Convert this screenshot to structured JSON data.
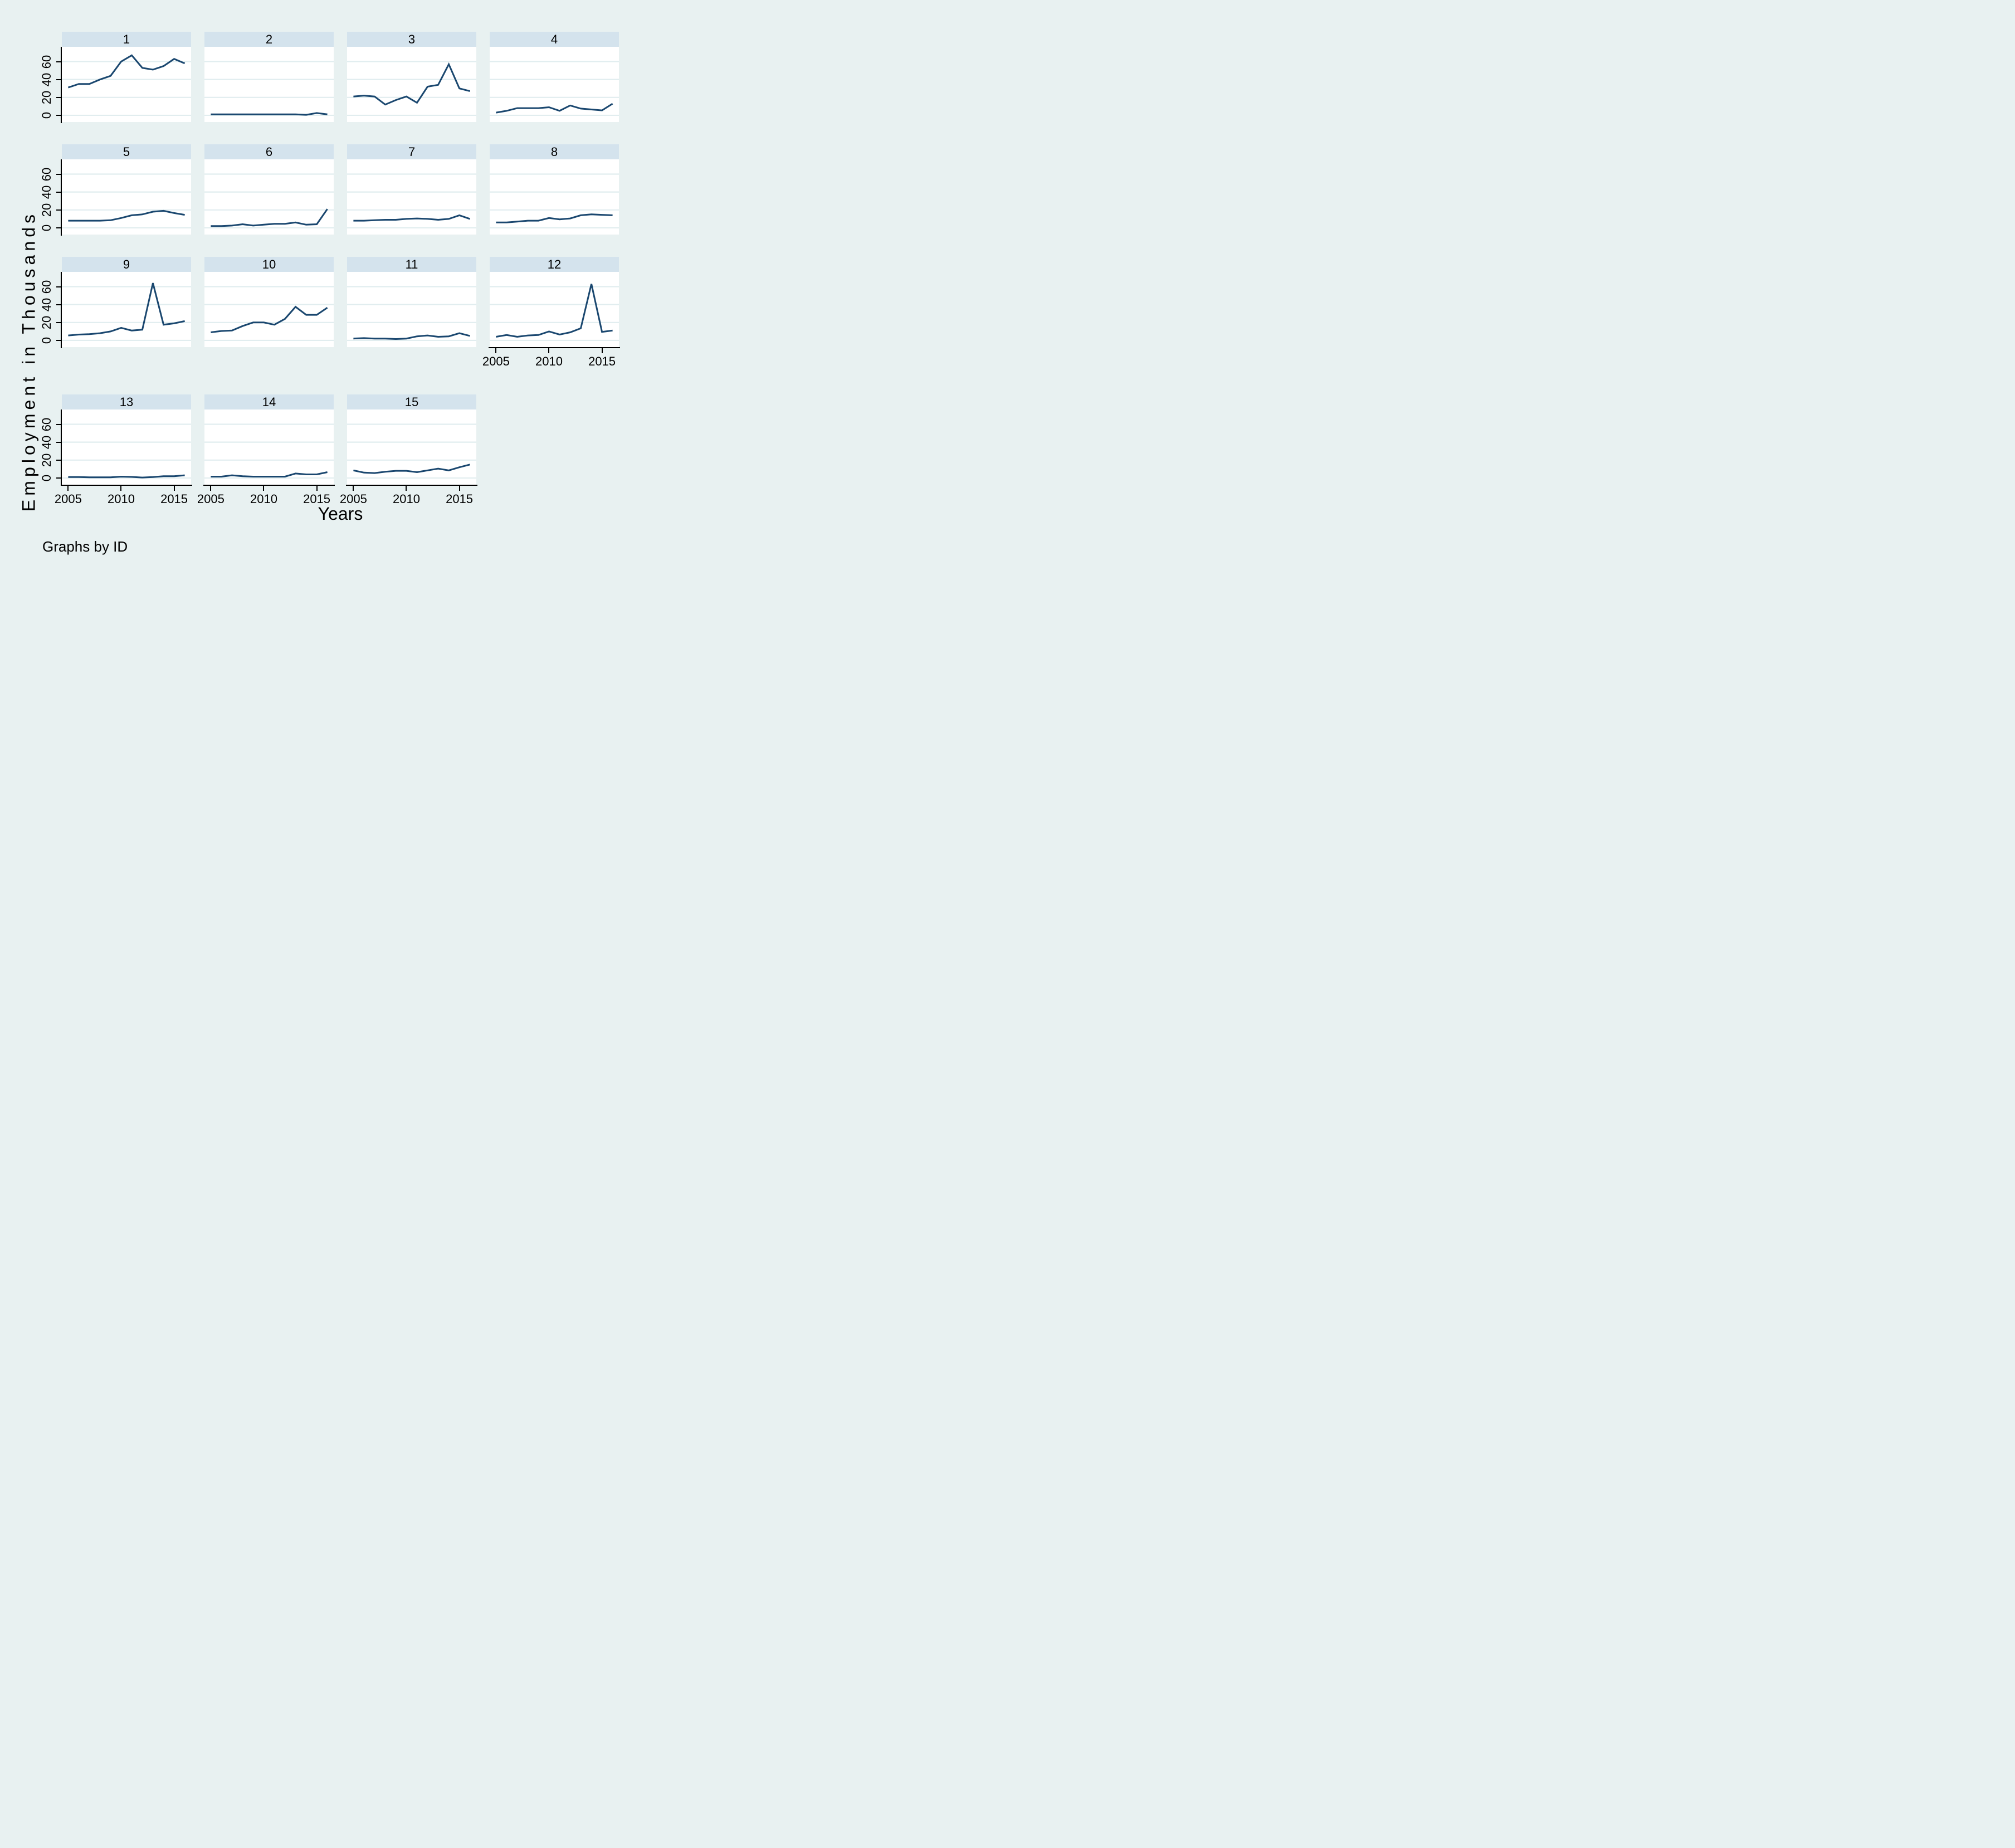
{
  "figure": {
    "ylabel": "Employment in Thousands",
    "xlabel": "Years",
    "caption": "Graphs by ID",
    "colors": {
      "background": "#e8f1f1",
      "panel_header": "#d4e3ed",
      "plot_background": "#ffffff",
      "gridline": "#e1edef",
      "line": "#1a476f",
      "axis": "#000000"
    }
  },
  "chart_data": {
    "type": "line",
    "title": "",
    "xlabel": "Years",
    "ylabel": "Employment in Thousands",
    "facet_by": "ID",
    "grid": true,
    "legend": "none",
    "x": [
      2005,
      2006,
      2007,
      2008,
      2009,
      2010,
      2011,
      2012,
      2013,
      2014,
      2015,
      2016
    ],
    "xticks": [
      2005,
      2010,
      2015
    ],
    "yticks": [
      0,
      20,
      40,
      60
    ],
    "xlim": [
      2004.4,
      2016.6
    ],
    "ylim": [
      -7.5,
      76.5
    ],
    "series": [
      {
        "name": "1",
        "values": [
          31,
          35,
          35,
          40,
          44,
          60,
          67,
          53,
          51,
          55,
          63,
          58
        ]
      },
      {
        "name": "2",
        "values": [
          1,
          1,
          1,
          1,
          1,
          1,
          1,
          1,
          1,
          0.5,
          2.5,
          1
        ]
      },
      {
        "name": "3",
        "values": [
          21,
          22,
          21,
          12,
          17,
          21,
          14,
          32,
          34,
          57,
          30,
          27
        ]
      },
      {
        "name": "4",
        "values": [
          3,
          5,
          8,
          8,
          8,
          9,
          5,
          11,
          7.5,
          6.5,
          5.5,
          13
        ]
      },
      {
        "name": "5",
        "values": [
          8,
          8,
          8,
          8,
          8.5,
          11,
          14,
          15,
          18,
          19,
          16.5,
          14.5
        ]
      },
      {
        "name": "6",
        "values": [
          2,
          2,
          2.5,
          4,
          2.5,
          3.5,
          4.5,
          4.5,
          6,
          3.5,
          4,
          21
        ]
      },
      {
        "name": "7",
        "values": [
          8,
          8,
          8.5,
          9,
          9,
          10,
          10.5,
          10,
          9,
          10,
          14,
          10
        ]
      },
      {
        "name": "8",
        "values": [
          6,
          6,
          7,
          8,
          8,
          11,
          9.5,
          10.5,
          14,
          15,
          14.5,
          14
        ]
      },
      {
        "name": "9",
        "values": [
          5.5,
          6.5,
          7,
          8,
          10,
          14,
          11,
          12,
          64,
          17.5,
          19,
          21.5
        ]
      },
      {
        "name": "10",
        "values": [
          9,
          10.5,
          11,
          16,
          20,
          20,
          17.5,
          24,
          37.5,
          28.5,
          28.5,
          36.5
        ]
      },
      {
        "name": "11",
        "values": [
          2,
          2.5,
          2,
          2,
          1.5,
          2,
          4.5,
          5.5,
          4,
          4.5,
          8,
          5
        ]
      },
      {
        "name": "12",
        "values": [
          4,
          6,
          4,
          5.5,
          6,
          10,
          6.5,
          9,
          13.5,
          63,
          9.5,
          11
        ]
      },
      {
        "name": "13",
        "values": [
          1,
          1,
          0.8,
          0.8,
          0.8,
          1.5,
          1.2,
          0.5,
          1,
          2,
          2,
          3
        ]
      },
      {
        "name": "14",
        "values": [
          1.5,
          1.5,
          3,
          2,
          1.5,
          1.5,
          1.5,
          1.5,
          5,
          4,
          4,
          6.5
        ]
      },
      {
        "name": "15",
        "values": [
          8.5,
          6,
          5.5,
          7,
          8,
          8,
          6.5,
          8.5,
          10.5,
          8.5,
          12,
          15
        ]
      }
    ]
  }
}
